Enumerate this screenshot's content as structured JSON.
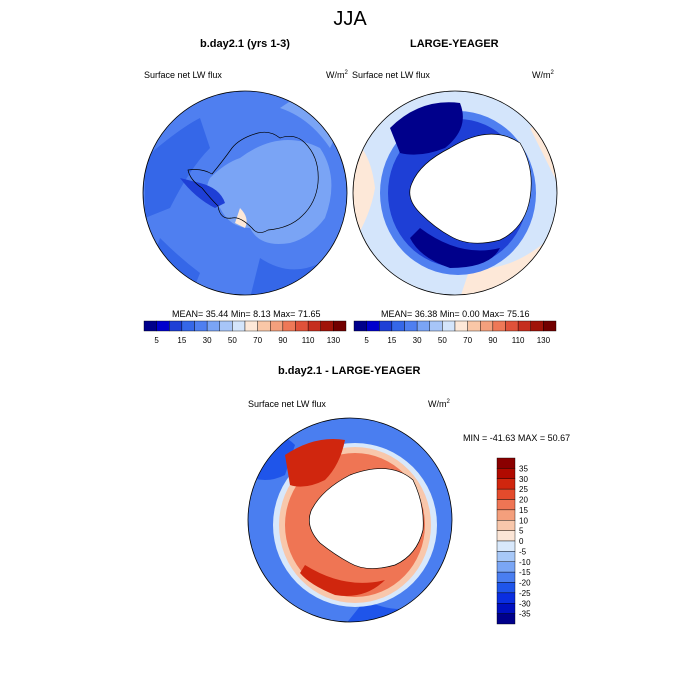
{
  "main_title": "JJA",
  "panels": [
    {
      "title": "b.day2.1 (yrs 1-3)",
      "variable": "Surface net LW flux",
      "units": "W/m",
      "units_sup": "2",
      "stats": {
        "mean_label": "MEAN=",
        "mean": "35.44",
        "min_label": "Min=",
        "min": "8.13",
        "max_label": "Max=",
        "max": "71.65"
      }
    },
    {
      "title": "LARGE-YEAGER",
      "variable": "Surface net LW flux",
      "units": "W/m",
      "units_sup": "2",
      "stats": {
        "mean_label": "MEAN=",
        "mean": "36.38",
        "min_label": "Min=",
        "min": "0.00",
        "max_label": "Max=",
        "max": "75.16"
      }
    },
    {
      "title": "b.day2.1 - LARGE-YEAGER",
      "variable": "Surface net LW flux",
      "units": "W/m",
      "units_sup": "2",
      "stats": {
        "min_label": "MIN =",
        "min": "-41.63",
        "max_label": "MAX =",
        "max": "50.67"
      }
    }
  ],
  "colorbars": {
    "absolute": {
      "colors": [
        "#00008b",
        "#0000cd",
        "#1e3fd6",
        "#3567e8",
        "#4f7ff0",
        "#7aa4f5",
        "#a7c5f8",
        "#d4e5fb",
        "#fde8d8",
        "#f9c7a7",
        "#f4a07d",
        "#ee7857",
        "#e0523a",
        "#c52e1e",
        "#a01309",
        "#720000"
      ],
      "labels": [
        "5",
        "15",
        "30",
        "50",
        "70",
        "90",
        "110",
        "130"
      ]
    },
    "difference": {
      "colors": [
        "#00008b",
        "#0010c0",
        "#0a2ee0",
        "#1f55ea",
        "#4a7ef0",
        "#7aa6f5",
        "#a7c8f8",
        "#d8e8fb",
        "#fbe5d6",
        "#f8c7ab",
        "#f49f7c",
        "#ef7554",
        "#e44b2c",
        "#d0260e",
        "#b00a00",
        "#8a0000"
      ],
      "labels": [
        "35",
        "30",
        "25",
        "20",
        "15",
        "10",
        "5",
        "0",
        "-5",
        "-10",
        "-15",
        "-20",
        "-25",
        "-30",
        "-35"
      ]
    }
  }
}
